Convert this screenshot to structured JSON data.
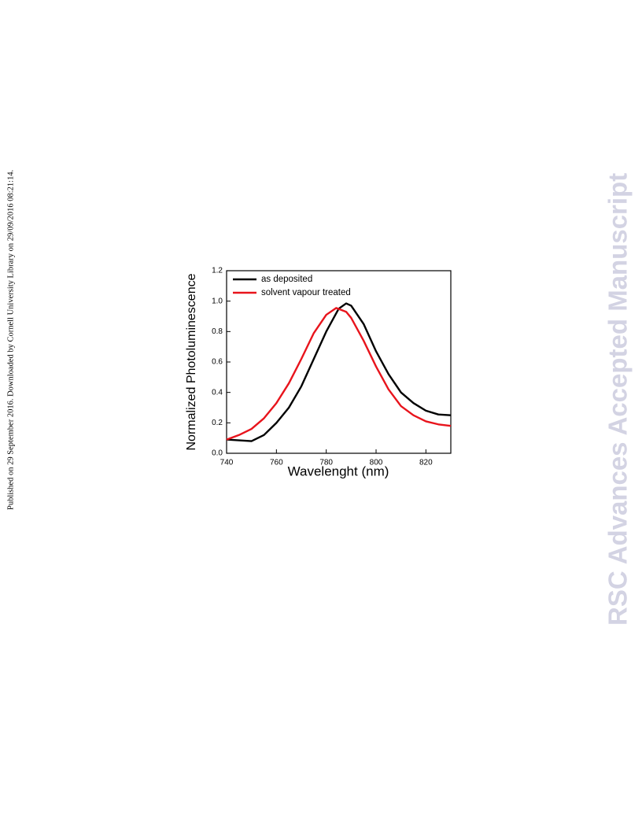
{
  "margin_note": "Published on 29 September 2016. Downloaded by Cornell University Library on 29/09/2016 08:21:14.",
  "watermark": "RSC Advances Accepted Manuscript",
  "chart_data": {
    "type": "line",
    "x_label": "Wavelenght (nm)",
    "y_label": "Normalized Photoluminescence",
    "xlim": [
      740,
      830
    ],
    "xticks": [
      740,
      760,
      780,
      800,
      820
    ],
    "ylim": [
      0,
      1.2
    ],
    "yticks": [
      {
        "value": 0,
        "label": "0.0"
      },
      0.2,
      0.4,
      0.6,
      0.8,
      {
        "value": 1,
        "label": "1.0"
      },
      1.2
    ],
    "legend": "upper-left",
    "series": [
      {
        "name": "as deposited",
        "color": "#000000",
        "x": [
          740,
          745,
          750,
          755,
          760,
          765,
          770,
          775,
          780,
          785,
          788,
          790,
          795,
          800,
          805,
          810,
          815,
          820,
          825,
          830
        ],
        "values": [
          0.09,
          0.085,
          0.08,
          0.12,
          0.2,
          0.3,
          0.44,
          0.62,
          0.8,
          0.95,
          0.985,
          0.97,
          0.85,
          0.67,
          0.52,
          0.4,
          0.33,
          0.28,
          0.255,
          0.25
        ]
      },
      {
        "name": "solvent vapour treated",
        "color": "#e8141c",
        "x": [
          740,
          745,
          750,
          755,
          760,
          765,
          770,
          775,
          780,
          784,
          788,
          790,
          795,
          800,
          805,
          810,
          815,
          820,
          825,
          830
        ],
        "values": [
          0.09,
          0.12,
          0.16,
          0.23,
          0.33,
          0.46,
          0.62,
          0.79,
          0.91,
          0.955,
          0.93,
          0.89,
          0.74,
          0.57,
          0.42,
          0.31,
          0.25,
          0.21,
          0.19,
          0.18
        ]
      }
    ]
  }
}
